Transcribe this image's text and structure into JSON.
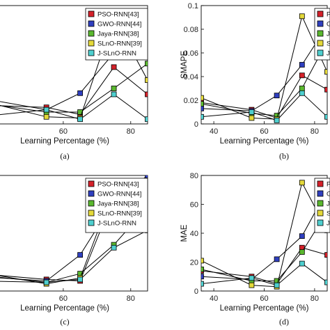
{
  "chart_data": [
    {
      "type": "line",
      "panel_label": "(a)",
      "xlabel": "Learning Percentage (%)",
      "ylabel": "",
      "xlim": [
        40,
        85
      ],
      "ylim": [
        0,
        0.1
      ],
      "xticks": [
        60,
        80
      ],
      "yticks": [],
      "x": [
        35,
        55,
        65,
        75,
        85
      ],
      "legend_position": "top-right",
      "series": [
        {
          "name": "PSO-RNN[43]",
          "color": "#d4212a",
          "values": [
            0.016,
            0.014,
            0.008,
            0.048,
            0.025
          ]
        },
        {
          "name": "GWO-RNN[44]",
          "color": "#2f3fbf",
          "values": [
            0.022,
            0.012,
            0.026,
            0.06,
            0.073
          ]
        },
        {
          "name": "Jaya-RNN[38]",
          "color": "#5ab82e",
          "values": [
            0.018,
            0.01,
            0.01,
            0.03,
            0.051
          ]
        },
        {
          "name": "SLnO-RNN[39]",
          "color": "#e4d93a",
          "values": [
            0.02,
            0.006,
            0.005,
            0.09,
            0.037
          ]
        },
        {
          "name": "J-SLnO-RNN",
          "color": "#4ecfcf",
          "values": [
            0.006,
            0.012,
            0.004,
            0.025,
            0.004
          ]
        }
      ]
    },
    {
      "type": "line",
      "panel_label": "(b)",
      "xlabel": "Learning Percentage (%)",
      "ylabel": "SMAPE",
      "xlim": [
        35,
        85
      ],
      "ylim": [
        0,
        0.1
      ],
      "xticks": [
        40,
        60,
        80
      ],
      "yticks": [
        0,
        0.02,
        0.04,
        0.06,
        0.08,
        0.1
      ],
      "x": [
        35,
        55,
        65,
        75,
        85
      ],
      "legend_position": "top-right",
      "series": [
        {
          "name": "P",
          "color": "#d4212a",
          "values": [
            0.018,
            0.012,
            0.005,
            0.041,
            0.029
          ]
        },
        {
          "name": "G",
          "color": "#2f3fbf",
          "values": [
            0.013,
            0.011,
            0.024,
            0.05,
            0.083
          ]
        },
        {
          "name": "J",
          "color": "#5ab82e",
          "values": [
            0.017,
            0.009,
            0.007,
            0.03,
            0.07
          ]
        },
        {
          "name": "S",
          "color": "#e4d93a",
          "values": [
            0.022,
            0.005,
            0.004,
            0.091,
            0.044
          ]
        },
        {
          "name": "J",
          "color": "#4ecfcf",
          "values": [
            0.006,
            0.01,
            0.003,
            0.026,
            0.006
          ]
        }
      ]
    },
    {
      "type": "line",
      "panel_label": "(c)",
      "xlabel": "Learning Percentage (%)",
      "ylabel": "",
      "xlim": [
        40,
        85
      ],
      "ylim": [
        0,
        80
      ],
      "xticks": [
        60,
        80
      ],
      "yticks": [],
      "x": [
        35,
        55,
        65,
        75,
        85
      ],
      "legend_position": "top-right",
      "series": [
        {
          "name": "PSO-RNN[43]",
          "color": "#d4212a",
          "values": [
            12,
            8,
            7,
            65,
            68
          ]
        },
        {
          "name": "GWO-RNN[44]",
          "color": "#2f3fbf",
          "values": [
            10,
            7,
            25,
            62,
            80
          ]
        },
        {
          "name": "Jaya-RNN[38]",
          "color": "#5ab82e",
          "values": [
            11,
            6,
            12,
            32,
            58
          ]
        },
        {
          "name": "SLnO-RNN[39]",
          "color": "#e4d93a",
          "values": [
            13,
            5,
            9,
            71,
            50
          ]
        },
        {
          "name": "J-SLnO-RNN",
          "color": "#4ecfcf",
          "values": [
            7,
            6,
            8,
            30,
            42
          ]
        }
      ]
    },
    {
      "type": "line",
      "panel_label": "(d)",
      "xlabel": "Learning Percentage (%)",
      "ylabel": "MAE",
      "xlim": [
        35,
        85
      ],
      "ylim": [
        0,
        80
      ],
      "xticks": [
        40,
        60,
        80
      ],
      "yticks": [
        0,
        20,
        40,
        60,
        80
      ],
      "x": [
        35,
        55,
        65,
        75,
        85
      ],
      "legend_position": "top-right",
      "series": [
        {
          "name": "P",
          "color": "#d4212a",
          "values": [
            14,
            10,
            5,
            30,
            25
          ]
        },
        {
          "name": "G",
          "color": "#2f3fbf",
          "values": [
            10,
            8,
            22,
            38,
            70
          ]
        },
        {
          "name": "J",
          "color": "#5ab82e",
          "values": [
            15,
            7,
            7,
            27,
            55
          ]
        },
        {
          "name": "S",
          "color": "#e4d93a",
          "values": [
            21,
            4,
            3,
            75,
            42
          ]
        },
        {
          "name": "J",
          "color": "#4ecfcf",
          "values": [
            5,
            9,
            4,
            19,
            6
          ]
        }
      ]
    }
  ]
}
